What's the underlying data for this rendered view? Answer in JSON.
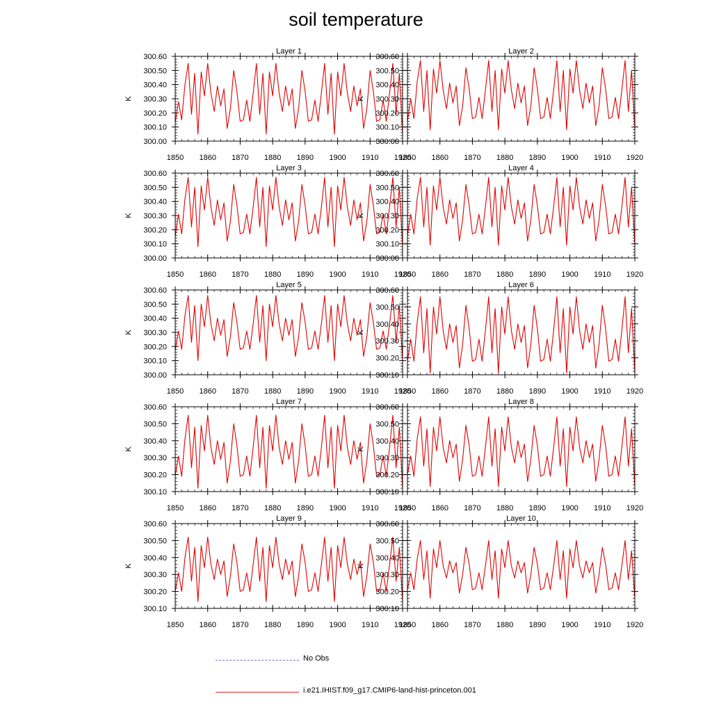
{
  "title": "soil temperature",
  "legend": {
    "obs_label": "No Obs",
    "obs_color": "#6a74c0",
    "model_label": "i.e21.IHIST.f09_g17.CMIP6-land-hist-princeton.001",
    "model_color": "#e02020"
  },
  "series_color": "#e00000",
  "chart_data": [
    {
      "type": "line",
      "title": "Layer 1",
      "ylabel": "K",
      "xlim": [
        1850,
        1920
      ],
      "ylim": [
        300.0,
        300.6
      ],
      "xticks": [
        1850,
        1860,
        1870,
        1880,
        1890,
        1900,
        1910,
        1920
      ],
      "yticks": [
        "300.00",
        "300.10",
        "300.20",
        "300.30",
        "300.40",
        "300.50",
        "300.60"
      ],
      "x_start": 1850,
      "values": [
        300.13,
        300.28,
        300.15,
        300.4,
        300.55,
        300.19,
        300.48,
        300.05,
        300.49,
        300.32,
        300.55,
        300.34,
        300.21,
        300.39,
        300.25,
        300.37,
        300.09,
        300.23,
        300.5,
        300.35,
        300.14,
        300.15,
        300.29,
        300.14,
        300.34,
        300.55,
        300.19,
        300.48,
        300.05,
        300.49,
        300.32,
        300.55,
        300.34,
        300.21,
        300.39,
        300.25,
        300.37,
        300.09,
        300.23,
        300.5,
        300.35,
        300.14,
        300.15,
        300.29,
        300.14,
        300.34,
        300.55,
        300.19,
        300.48,
        300.05,
        300.49,
        300.32,
        300.55,
        300.34,
        300.21,
        300.39,
        300.25,
        300.37,
        300.09,
        300.23,
        300.5,
        300.35,
        300.14,
        300.15,
        300.29,
        300.14,
        300.34,
        300.55,
        300.19,
        300.48,
        300.05
      ]
    },
    {
      "type": "line",
      "title": "Layer 2",
      "ylabel": "K",
      "xlim": [
        1850,
        1920
      ],
      "ylim": [
        300.0,
        300.6
      ],
      "xticks": [
        1850,
        1860,
        1870,
        1880,
        1890,
        1900,
        1910,
        1920
      ],
      "yticks": [
        "300.00",
        "300.10",
        "300.20",
        "300.30",
        "300.40",
        "300.50",
        "300.60"
      ],
      "x_start": 1850,
      "values": [
        300.14,
        300.3,
        300.16,
        300.42,
        300.57,
        300.21,
        300.5,
        300.08,
        300.51,
        300.34,
        300.57,
        300.36,
        300.23,
        300.41,
        300.27,
        300.39,
        300.11,
        300.25,
        300.52,
        300.37,
        300.16,
        300.17,
        300.31,
        300.16,
        300.36,
        300.57,
        300.21,
        300.5,
        300.08,
        300.51,
        300.34,
        300.57,
        300.36,
        300.23,
        300.41,
        300.27,
        300.39,
        300.11,
        300.25,
        300.52,
        300.37,
        300.16,
        300.17,
        300.31,
        300.16,
        300.36,
        300.57,
        300.21,
        300.5,
        300.08,
        300.51,
        300.34,
        300.57,
        300.36,
        300.23,
        300.41,
        300.27,
        300.39,
        300.11,
        300.25,
        300.52,
        300.37,
        300.16,
        300.17,
        300.31,
        300.16,
        300.36,
        300.57,
        300.21,
        300.5,
        300.08
      ]
    },
    {
      "type": "line",
      "title": "Layer 3",
      "ylabel": "K",
      "xlim": [
        1850,
        1920
      ],
      "ylim": [
        300.0,
        300.6
      ],
      "xticks": [
        1850,
        1860,
        1870,
        1880,
        1890,
        1900,
        1910,
        1920
      ],
      "yticks": [
        "300.00",
        "300.10",
        "300.20",
        "300.30",
        "300.40",
        "300.50",
        "300.60"
      ],
      "x_start": 1850,
      "values": [
        300.15,
        300.31,
        300.17,
        300.42,
        300.57,
        300.22,
        300.5,
        300.08,
        300.51,
        300.34,
        300.57,
        300.36,
        300.23,
        300.41,
        300.27,
        300.39,
        300.12,
        300.26,
        300.52,
        300.37,
        300.17,
        300.18,
        300.31,
        300.17,
        300.36,
        300.57,
        300.22,
        300.5,
        300.08,
        300.51,
        300.34,
        300.57,
        300.36,
        300.23,
        300.41,
        300.27,
        300.39,
        300.12,
        300.26,
        300.52,
        300.37,
        300.17,
        300.18,
        300.31,
        300.17,
        300.36,
        300.57,
        300.22,
        300.5,
        300.08,
        300.51,
        300.34,
        300.57,
        300.36,
        300.23,
        300.41,
        300.27,
        300.39,
        300.12,
        300.26,
        300.52,
        300.37,
        300.17,
        300.18,
        300.31,
        300.17,
        300.36,
        300.57,
        300.22,
        300.5,
        300.08
      ]
    },
    {
      "type": "line",
      "title": "Layer 4",
      "ylabel": "K",
      "xlim": [
        1850,
        1920
      ],
      "ylim": [
        300.0,
        300.6
      ],
      "xticks": [
        1850,
        1860,
        1870,
        1880,
        1890,
        1900,
        1910,
        1920
      ],
      "yticks": [
        "300.00",
        "300.10",
        "300.20",
        "300.30",
        "300.40",
        "300.50",
        "300.60"
      ],
      "x_start": 1850,
      "values": [
        300.16,
        300.31,
        300.17,
        300.42,
        300.57,
        300.22,
        300.5,
        300.09,
        300.51,
        300.34,
        300.57,
        300.36,
        300.24,
        300.41,
        300.28,
        300.39,
        300.12,
        300.27,
        300.52,
        300.37,
        300.17,
        300.18,
        300.31,
        300.17,
        300.36,
        300.57,
        300.22,
        300.5,
        300.09,
        300.51,
        300.34,
        300.57,
        300.36,
        300.24,
        300.41,
        300.28,
        300.39,
        300.12,
        300.27,
        300.52,
        300.37,
        300.17,
        300.18,
        300.31,
        300.17,
        300.36,
        300.57,
        300.22,
        300.5,
        300.09,
        300.51,
        300.34,
        300.57,
        300.36,
        300.24,
        300.41,
        300.28,
        300.39,
        300.12,
        300.27,
        300.52,
        300.37,
        300.17,
        300.18,
        300.31,
        300.17,
        300.36,
        300.57,
        300.22,
        300.5,
        300.09
      ]
    },
    {
      "type": "line",
      "title": "Layer 5",
      "ylabel": "K",
      "xlim": [
        1850,
        1920
      ],
      "ylim": [
        300.0,
        300.6
      ],
      "xticks": [
        1850,
        1860,
        1870,
        1880,
        1890,
        1900,
        1910,
        1920
      ],
      "yticks": [
        "300.00",
        "300.10",
        "300.20",
        "300.30",
        "300.40",
        "300.50",
        "300.60"
      ],
      "x_start": 1850,
      "values": [
        300.17,
        300.31,
        300.18,
        300.42,
        300.56,
        300.23,
        300.49,
        300.1,
        300.5,
        300.34,
        300.56,
        300.36,
        300.24,
        300.4,
        300.28,
        300.39,
        300.13,
        300.27,
        300.51,
        300.37,
        300.18,
        300.19,
        300.31,
        300.18,
        300.36,
        300.56,
        300.23,
        300.49,
        300.1,
        300.5,
        300.34,
        300.56,
        300.36,
        300.24,
        300.4,
        300.28,
        300.39,
        300.13,
        300.27,
        300.51,
        300.37,
        300.18,
        300.19,
        300.31,
        300.18,
        300.36,
        300.56,
        300.23,
        300.49,
        300.1,
        300.5,
        300.34,
        300.56,
        300.36,
        300.24,
        300.4,
        300.28,
        300.39,
        300.13,
        300.27,
        300.51,
        300.37,
        300.18,
        300.19,
        300.31,
        300.18,
        300.36,
        300.56,
        300.23,
        300.49,
        300.1
      ]
    },
    {
      "type": "line",
      "title": "Layer 6",
      "ylabel": "K",
      "xlim": [
        1850,
        1920
      ],
      "ylim": [
        300.1,
        300.6
      ],
      "xticks": [
        1850,
        1860,
        1870,
        1880,
        1890,
        1900,
        1910,
        1920
      ],
      "yticks": [
        "300.10",
        "300.20",
        "300.30",
        "300.40",
        "300.50",
        "300.60"
      ],
      "x_start": 1850,
      "values": [
        300.18,
        300.31,
        300.18,
        300.41,
        300.56,
        300.23,
        300.49,
        300.11,
        300.5,
        300.34,
        300.56,
        300.36,
        300.25,
        300.4,
        300.29,
        300.39,
        300.14,
        300.28,
        300.51,
        300.37,
        300.18,
        300.19,
        300.31,
        300.18,
        300.36,
        300.56,
        300.23,
        300.49,
        300.11,
        300.5,
        300.34,
        300.56,
        300.36,
        300.25,
        300.4,
        300.29,
        300.39,
        300.14,
        300.28,
        300.51,
        300.37,
        300.18,
        300.19,
        300.31,
        300.18,
        300.36,
        300.56,
        300.23,
        300.49,
        300.11,
        300.5,
        300.34,
        300.56,
        300.36,
        300.25,
        300.4,
        300.29,
        300.39,
        300.14,
        300.28,
        300.51,
        300.37,
        300.18,
        300.19,
        300.31,
        300.18,
        300.36,
        300.56,
        300.23,
        300.49,
        300.11
      ]
    },
    {
      "type": "line",
      "title": "Layer 7",
      "ylabel": "K",
      "xlim": [
        1850,
        1920
      ],
      "ylim": [
        300.1,
        300.6
      ],
      "xticks": [
        1850,
        1860,
        1870,
        1880,
        1890,
        1900,
        1910,
        1920
      ],
      "yticks": [
        "300.10",
        "300.20",
        "300.30",
        "300.40",
        "300.50",
        "300.60"
      ],
      "x_start": 1850,
      "values": [
        300.19,
        300.31,
        300.19,
        300.41,
        300.55,
        300.24,
        300.48,
        300.12,
        300.49,
        300.34,
        300.55,
        300.36,
        300.26,
        300.4,
        300.29,
        300.39,
        300.15,
        300.28,
        300.5,
        300.37,
        300.19,
        300.2,
        300.31,
        300.19,
        300.36,
        300.55,
        300.24,
        300.48,
        300.12,
        300.49,
        300.34,
        300.55,
        300.36,
        300.26,
        300.4,
        300.29,
        300.39,
        300.15,
        300.28,
        300.5,
        300.37,
        300.19,
        300.2,
        300.31,
        300.19,
        300.36,
        300.55,
        300.24,
        300.48,
        300.12,
        300.49,
        300.34,
        300.55,
        300.36,
        300.26,
        300.4,
        300.29,
        300.39,
        300.15,
        300.28,
        300.5,
        300.37,
        300.19,
        300.2,
        300.31,
        300.19,
        300.36,
        300.55,
        300.24,
        300.48,
        300.12
      ]
    },
    {
      "type": "line",
      "title": "Layer 8",
      "ylabel": "K",
      "xlim": [
        1850,
        1920
      ],
      "ylim": [
        300.1,
        300.6
      ],
      "xticks": [
        1850,
        1860,
        1870,
        1880,
        1890,
        1900,
        1910,
        1920
      ],
      "yticks": [
        "300.10",
        "300.20",
        "300.30",
        "300.40",
        "300.50",
        "300.60"
      ],
      "x_start": 1850,
      "values": [
        300.2,
        300.31,
        300.19,
        300.41,
        300.54,
        300.25,
        300.47,
        300.13,
        300.48,
        300.34,
        300.54,
        300.36,
        300.27,
        300.4,
        300.3,
        300.38,
        300.16,
        300.29,
        300.49,
        300.37,
        300.19,
        300.2,
        300.31,
        300.19,
        300.36,
        300.54,
        300.25,
        300.47,
        300.13,
        300.48,
        300.34,
        300.54,
        300.36,
        300.27,
        300.4,
        300.3,
        300.38,
        300.16,
        300.29,
        300.49,
        300.37,
        300.19,
        300.2,
        300.31,
        300.19,
        300.36,
        300.54,
        300.25,
        300.47,
        300.13,
        300.48,
        300.34,
        300.54,
        300.36,
        300.27,
        300.4,
        300.3,
        300.38,
        300.16,
        300.29,
        300.49,
        300.37,
        300.19,
        300.2,
        300.31,
        300.19,
        300.36,
        300.54,
        300.25,
        300.47,
        300.13
      ]
    },
    {
      "type": "line",
      "title": "Layer 9",
      "ylabel": "K",
      "xlim": [
        1850,
        1920
      ],
      "ylim": [
        300.1,
        300.6
      ],
      "xticks": [
        1850,
        1860,
        1870,
        1880,
        1890,
        1900,
        1910,
        1920
      ],
      "yticks": [
        "300.10",
        "300.20",
        "300.30",
        "300.40",
        "300.50",
        "300.60"
      ],
      "x_start": 1850,
      "values": [
        300.2,
        300.31,
        300.2,
        300.4,
        300.52,
        300.26,
        300.46,
        300.14,
        300.47,
        300.34,
        300.52,
        300.36,
        300.27,
        300.39,
        300.3,
        300.38,
        300.17,
        300.29,
        300.48,
        300.37,
        300.2,
        300.21,
        300.31,
        300.2,
        300.36,
        300.52,
        300.26,
        300.46,
        300.14,
        300.47,
        300.34,
        300.52,
        300.36,
        300.27,
        300.39,
        300.3,
        300.38,
        300.17,
        300.29,
        300.48,
        300.37,
        300.2,
        300.21,
        300.31,
        300.2,
        300.36,
        300.52,
        300.26,
        300.46,
        300.14,
        300.47,
        300.34,
        300.52,
        300.36,
        300.27,
        300.39,
        300.3,
        300.38,
        300.17,
        300.29,
        300.48,
        300.37,
        300.2,
        300.21,
        300.31,
        300.2,
        300.36,
        300.52,
        300.26,
        300.46,
        300.14
      ]
    },
    {
      "type": "line",
      "title": "Layer 10",
      "ylabel": "K",
      "xlim": [
        1850,
        1920
      ],
      "ylim": [
        300.1,
        300.6
      ],
      "xticks": [
        1850,
        1860,
        1870,
        1880,
        1890,
        1900,
        1910,
        1920
      ],
      "yticks": [
        "300.10",
        "300.20",
        "300.30",
        "300.40",
        "300.50",
        "300.60"
      ],
      "x_start": 1850,
      "values": [
        300.21,
        300.31,
        300.21,
        300.39,
        300.5,
        300.27,
        300.44,
        300.16,
        300.45,
        300.34,
        300.5,
        300.35,
        300.28,
        300.38,
        300.31,
        300.37,
        300.19,
        300.3,
        300.46,
        300.36,
        300.21,
        300.22,
        300.31,
        300.21,
        300.35,
        300.5,
        300.27,
        300.44,
        300.16,
        300.45,
        300.34,
        300.5,
        300.35,
        300.28,
        300.38,
        300.31,
        300.37,
        300.19,
        300.3,
        300.46,
        300.36,
        300.21,
        300.22,
        300.31,
        300.21,
        300.35,
        300.5,
        300.27,
        300.44,
        300.16,
        300.45,
        300.34,
        300.5,
        300.35,
        300.28,
        300.38,
        300.31,
        300.37,
        300.19,
        300.3,
        300.46,
        300.36,
        300.21,
        300.22,
        300.31,
        300.21,
        300.35,
        300.5,
        300.27,
        300.44,
        300.16
      ]
    }
  ]
}
